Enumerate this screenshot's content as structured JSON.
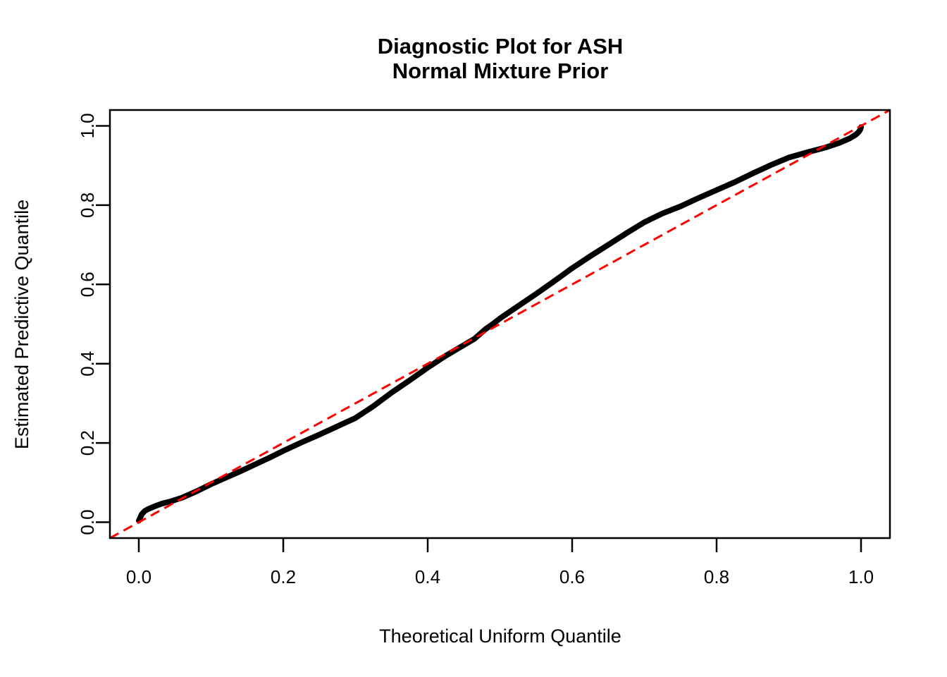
{
  "page": {
    "background": "#ffffff",
    "foreground": "#000000"
  },
  "chart_data": {
    "type": "line",
    "title": "Diagnostic Plot for ASH",
    "subtitle": "Normal Mixture Prior",
    "xlabel": "Theoretical Uniform Quantile",
    "ylabel": "Estimated Predictive Quantile",
    "xlim": [
      -0.04,
      1.04
    ],
    "ylim": [
      -0.04,
      1.04
    ],
    "grid": false,
    "legend": "none",
    "x_ticks": [
      "0.0",
      "0.2",
      "0.4",
      "0.6",
      "0.8",
      "1.0"
    ],
    "x_tick_values": [
      0.0,
      0.2,
      0.4,
      0.6,
      0.8,
      1.0
    ],
    "y_ticks": [
      "0.0",
      "0.2",
      "0.4",
      "0.6",
      "0.8",
      "1.0"
    ],
    "y_tick_values": [
      0.0,
      0.2,
      0.4,
      0.6,
      0.8,
      1.0
    ],
    "series": [
      {
        "name": "estimated-predictive-quantiles",
        "color": "#000000",
        "line_width": 8,
        "points": [
          [
            0.0,
            0.004
          ],
          [
            0.002,
            0.012
          ],
          [
            0.004,
            0.02
          ],
          [
            0.008,
            0.028
          ],
          [
            0.014,
            0.034
          ],
          [
            0.022,
            0.04
          ],
          [
            0.032,
            0.047
          ],
          [
            0.045,
            0.053
          ],
          [
            0.06,
            0.062
          ],
          [
            0.08,
            0.078
          ],
          [
            0.1,
            0.096
          ],
          [
            0.12,
            0.112
          ],
          [
            0.14,
            0.128
          ],
          [
            0.16,
            0.145
          ],
          [
            0.18,
            0.162
          ],
          [
            0.2,
            0.18
          ],
          [
            0.225,
            0.201
          ],
          [
            0.25,
            0.221
          ],
          [
            0.275,
            0.242
          ],
          [
            0.3,
            0.263
          ],
          [
            0.325,
            0.293
          ],
          [
            0.35,
            0.327
          ],
          [
            0.375,
            0.358
          ],
          [
            0.4,
            0.39
          ],
          [
            0.425,
            0.42
          ],
          [
            0.45,
            0.447
          ],
          [
            0.465,
            0.463
          ],
          [
            0.48,
            0.487
          ],
          [
            0.49,
            0.5
          ],
          [
            0.5,
            0.514
          ],
          [
            0.525,
            0.545
          ],
          [
            0.55,
            0.576
          ],
          [
            0.575,
            0.608
          ],
          [
            0.6,
            0.641
          ],
          [
            0.625,
            0.671
          ],
          [
            0.65,
            0.7
          ],
          [
            0.675,
            0.729
          ],
          [
            0.7,
            0.757
          ],
          [
            0.725,
            0.779
          ],
          [
            0.75,
            0.797
          ],
          [
            0.775,
            0.818
          ],
          [
            0.8,
            0.838
          ],
          [
            0.825,
            0.858
          ],
          [
            0.85,
            0.88
          ],
          [
            0.875,
            0.901
          ],
          [
            0.9,
            0.92
          ],
          [
            0.925,
            0.933
          ],
          [
            0.95,
            0.945
          ],
          [
            0.97,
            0.957
          ],
          [
            0.985,
            0.969
          ],
          [
            0.993,
            0.978
          ],
          [
            0.997,
            0.985
          ],
          [
            0.999,
            0.991
          ],
          [
            1.0,
            0.997
          ]
        ]
      }
    ],
    "reference_line": {
      "name": "y-equals-x",
      "from": [
        -0.04,
        -0.04
      ],
      "to": [
        1.04,
        1.04
      ],
      "color": "#FF0000",
      "style": "dashed",
      "line_width": 3
    }
  }
}
